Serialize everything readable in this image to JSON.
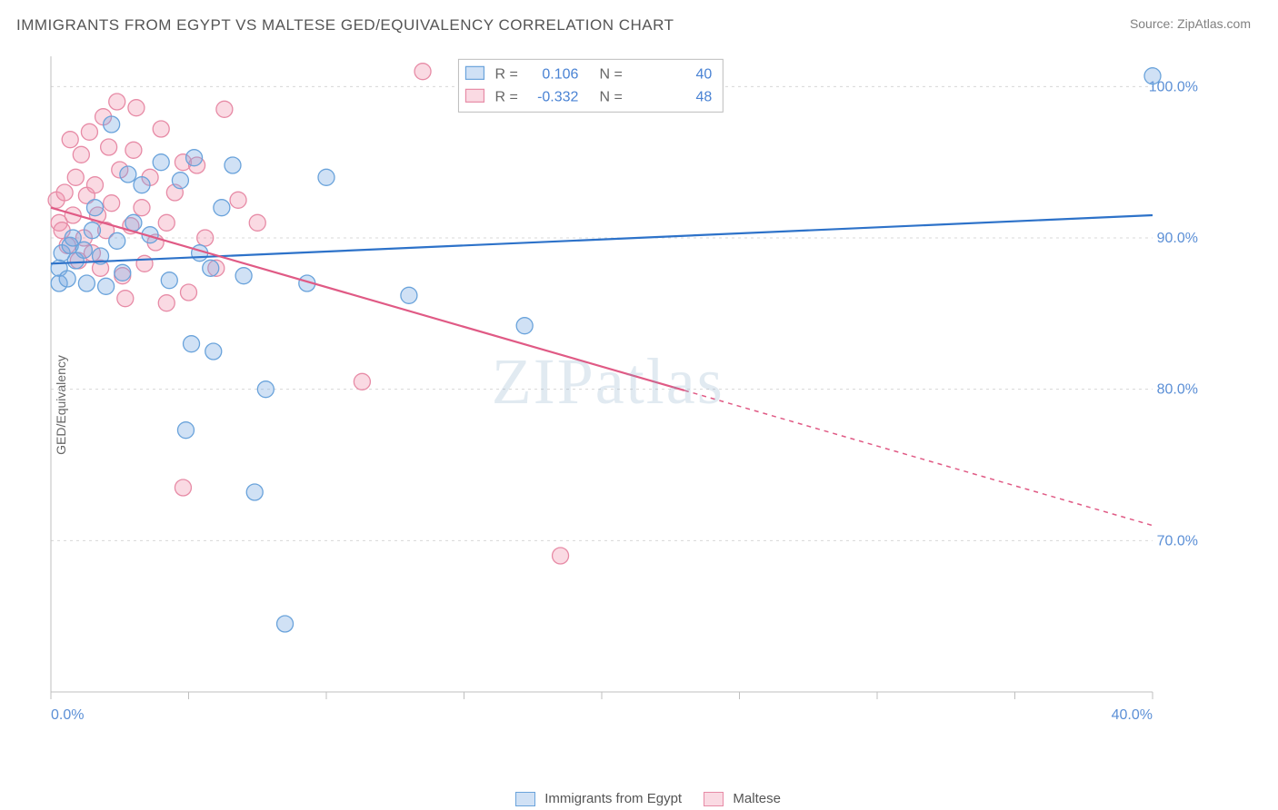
{
  "title": "IMMIGRANTS FROM EGYPT VS MALTESE GED/EQUIVALENCY CORRELATION CHART",
  "source": "Source: ZipAtlas.com",
  "y_axis_label": "GED/Equivalency",
  "watermark": "ZIPatlas",
  "chart": {
    "type": "scatter_with_regression",
    "x_domain": [
      0,
      40
    ],
    "y_domain": [
      60,
      102
    ],
    "x_ticks": [
      0,
      5,
      10,
      15,
      20,
      25,
      30,
      35,
      40
    ],
    "x_tick_labels": {
      "0": "0.0%",
      "40": "40.0%"
    },
    "y_gridlines": [
      70,
      80,
      90,
      100
    ],
    "y_grid_labels": {
      "70": "70.0%",
      "80": "80.0%",
      "90": "90.0%",
      "100": "100.0%"
    },
    "grid_color": "#d8d8d8",
    "axis_color": "#bfbfbf",
    "grid_label_color": "#5b8fd6",
    "background": "#ffffff",
    "marker_radius": 9,
    "marker_stroke_width": 1.3,
    "regression_stroke_width": 2.2
  },
  "series": [
    {
      "id": "egypt",
      "label": "Immigrants from Egypt",
      "fill": "rgba(120,170,225,0.35)",
      "stroke": "#6aa3db",
      "reg_color": "#2d72c9",
      "R": "0.106",
      "N": "40",
      "regression": {
        "x1": 0,
        "y1": 88.3,
        "x2": 40,
        "y2": 91.5,
        "dash_from_x": null
      },
      "points": [
        [
          0.3,
          88.0
        ],
        [
          0.3,
          87.0
        ],
        [
          0.4,
          89.0
        ],
        [
          0.6,
          87.3
        ],
        [
          0.7,
          89.5
        ],
        [
          0.8,
          90.0
        ],
        [
          0.9,
          88.5
        ],
        [
          1.2,
          89.2
        ],
        [
          1.3,
          87.0
        ],
        [
          1.5,
          90.5
        ],
        [
          1.6,
          92.0
        ],
        [
          1.8,
          88.8
        ],
        [
          2.0,
          86.8
        ],
        [
          2.2,
          97.5
        ],
        [
          2.4,
          89.8
        ],
        [
          2.6,
          87.7
        ],
        [
          2.8,
          94.2
        ],
        [
          3.0,
          91.0
        ],
        [
          3.3,
          93.5
        ],
        [
          3.6,
          90.2
        ],
        [
          4.0,
          95.0
        ],
        [
          4.3,
          87.2
        ],
        [
          4.7,
          93.8
        ],
        [
          4.9,
          77.3
        ],
        [
          5.1,
          83.0
        ],
        [
          5.2,
          95.3
        ],
        [
          5.4,
          89.0
        ],
        [
          5.8,
          88.0
        ],
        [
          5.9,
          82.5
        ],
        [
          6.2,
          92.0
        ],
        [
          6.6,
          94.8
        ],
        [
          7.0,
          87.5
        ],
        [
          7.4,
          73.2
        ],
        [
          7.8,
          80.0
        ],
        [
          8.5,
          64.5
        ],
        [
          9.3,
          87.0
        ],
        [
          10.0,
          94.0
        ],
        [
          13.0,
          86.2
        ],
        [
          17.2,
          84.2
        ],
        [
          40.0,
          100.7
        ]
      ]
    },
    {
      "id": "maltese",
      "label": "Maltese",
      "fill": "rgba(240,150,175,0.35)",
      "stroke": "#e78ba6",
      "reg_color": "#e05a85",
      "R": "-0.332",
      "N": "48",
      "regression": {
        "x1": 0,
        "y1": 92.0,
        "x2": 40,
        "y2": 71.0,
        "dash_from_x": 23
      },
      "points": [
        [
          0.2,
          92.5
        ],
        [
          0.3,
          91.0
        ],
        [
          0.4,
          90.5
        ],
        [
          0.5,
          93.0
        ],
        [
          0.6,
          89.5
        ],
        [
          0.7,
          96.5
        ],
        [
          0.8,
          91.5
        ],
        [
          0.9,
          94.0
        ],
        [
          1.0,
          88.5
        ],
        [
          1.1,
          95.5
        ],
        [
          1.2,
          90.0
        ],
        [
          1.3,
          92.8
        ],
        [
          1.4,
          97.0
        ],
        [
          1.5,
          89.0
        ],
        [
          1.6,
          93.5
        ],
        [
          1.7,
          91.5
        ],
        [
          1.8,
          88.0
        ],
        [
          1.9,
          98.0
        ],
        [
          2.0,
          90.5
        ],
        [
          2.1,
          96.0
        ],
        [
          2.2,
          92.3
        ],
        [
          2.4,
          99.0
        ],
        [
          2.5,
          94.5
        ],
        [
          2.6,
          87.5
        ],
        [
          2.7,
          86.0
        ],
        [
          2.9,
          90.8
        ],
        [
          3.0,
          95.8
        ],
        [
          3.1,
          98.6
        ],
        [
          3.3,
          92.0
        ],
        [
          3.4,
          88.3
        ],
        [
          3.6,
          94.0
        ],
        [
          3.8,
          89.7
        ],
        [
          4.0,
          97.2
        ],
        [
          4.2,
          91.0
        ],
        [
          4.2,
          85.7
        ],
        [
          4.5,
          93.0
        ],
        [
          4.8,
          95.0
        ],
        [
          4.8,
          73.5
        ],
        [
          5.0,
          86.4
        ],
        [
          5.3,
          94.8
        ],
        [
          5.6,
          90.0
        ],
        [
          6.0,
          88.0
        ],
        [
          6.3,
          98.5
        ],
        [
          6.8,
          92.5
        ],
        [
          7.5,
          91.0
        ],
        [
          11.3,
          80.5
        ],
        [
          13.5,
          101.0
        ],
        [
          18.5,
          69.0
        ]
      ]
    }
  ],
  "stats_box": {
    "x": 14.8,
    "y_top": 101.8,
    "width": 9.6,
    "height": 4.0,
    "border_color": "#bcbcbc",
    "bg": "#ffffff",
    "text_color": "#666666",
    "value_color": "#4a83d4",
    "r_label": "R  =",
    "n_label": "N  ="
  },
  "bottom_legend": {
    "egypt_label": "Immigrants from Egypt",
    "maltese_label": "Maltese"
  }
}
